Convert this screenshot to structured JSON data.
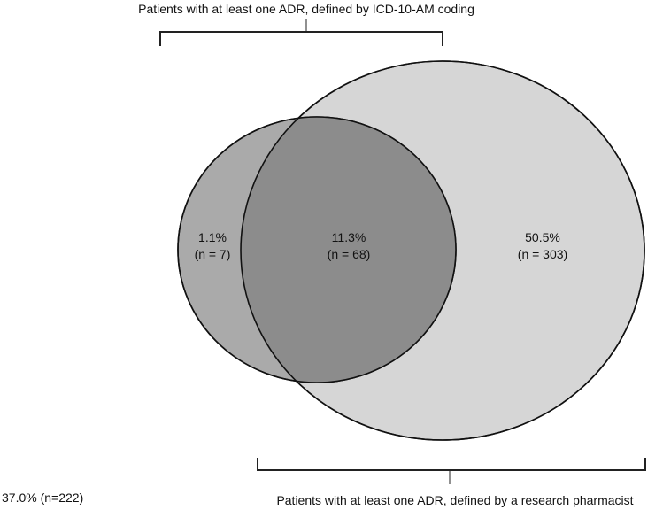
{
  "diagram": {
    "type": "venn",
    "top_bracket_label": "Patients with at least one ADR, defined by ICD-10-AM coding",
    "bottom_bracket_label": "Patients with at least one ADR, defined by a research pharmacist",
    "outside_label": "37.0% (n=222)",
    "regions": {
      "icd_only": {
        "percent": "1.1%",
        "count": "(n = 7)"
      },
      "both": {
        "percent": "11.3%",
        "count": "(n = 68)"
      },
      "pharmacist_only": {
        "percent": "50.5%",
        "count": "(n = 303)"
      }
    },
    "colors": {
      "small_circle": "#aaaaaa",
      "large_circle": "#d6d6d6",
      "overlap": "#8c8c8c",
      "stroke": "#111111",
      "bracket": "#222222"
    }
  }
}
